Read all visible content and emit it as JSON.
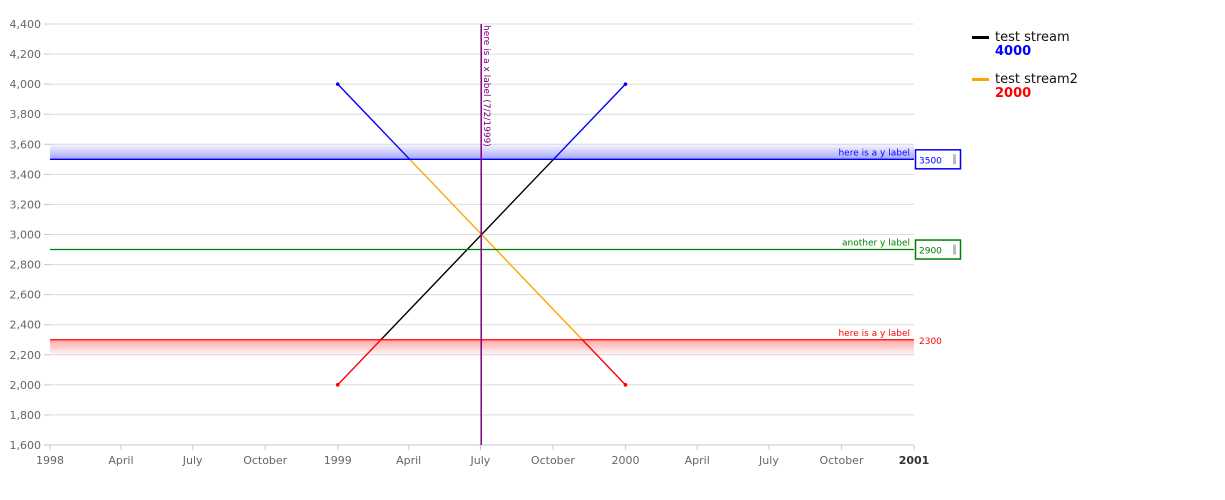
{
  "chart_data": {
    "type": "line",
    "x_axis": {
      "type": "date",
      "min": "1998-01-01",
      "max": "2001-01-01",
      "ticks": [
        {
          "date": "1998-01-01",
          "label": "1998",
          "major": true
        },
        {
          "date": "1998-04-01",
          "label": "April",
          "major": false
        },
        {
          "date": "1998-07-01",
          "label": "July",
          "major": false
        },
        {
          "date": "1998-10-01",
          "label": "October",
          "major": false
        },
        {
          "date": "1999-01-01",
          "label": "1999",
          "major": true
        },
        {
          "date": "1999-04-01",
          "label": "April",
          "major": false
        },
        {
          "date": "1999-07-01",
          "label": "July",
          "major": false
        },
        {
          "date": "1999-10-01",
          "label": "October",
          "major": false
        },
        {
          "date": "2000-01-01",
          "label": "2000",
          "major": true
        },
        {
          "date": "2000-04-01",
          "label": "April",
          "major": false
        },
        {
          "date": "2000-07-01",
          "label": "July",
          "major": false
        },
        {
          "date": "2000-10-01",
          "label": "October",
          "major": false
        },
        {
          "date": "2001-01-01",
          "label": "2001",
          "major": true,
          "bold": true
        }
      ]
    },
    "y_axis": {
      "min": 1600,
      "max": 4400,
      "ticks": [
        {
          "value": 1600,
          "label": "1,600"
        },
        {
          "value": 1800,
          "label": "1,800"
        },
        {
          "value": 2000,
          "label": "2,000"
        },
        {
          "value": 2200,
          "label": "2,200"
        },
        {
          "value": 2400,
          "label": "2,400"
        },
        {
          "value": 2600,
          "label": "2,600"
        },
        {
          "value": 2800,
          "label": "2,800"
        },
        {
          "value": 3000,
          "label": "3,000"
        },
        {
          "value": 3200,
          "label": "3,200"
        },
        {
          "value": 3400,
          "label": "3,400"
        },
        {
          "value": 3600,
          "label": "3,600"
        },
        {
          "value": 3800,
          "label": "3,800"
        },
        {
          "value": 4000,
          "label": "4,000"
        },
        {
          "value": 4200,
          "label": "4,200"
        },
        {
          "value": 4400,
          "label": "4,400"
        }
      ]
    },
    "grid": true,
    "series": [
      {
        "name": "test stream",
        "color": "#000000",
        "legend_value": "4000",
        "legend_value_color": "#0000ff",
        "points": [
          {
            "x": "1999-01-01",
            "y": 2000
          },
          {
            "x": "2000-01-01",
            "y": 4000
          }
        ],
        "threshold_colors": {
          "above": "#0000ff",
          "below": "#ff0000"
        }
      },
      {
        "name": "test stream2",
        "color": "#ffa500",
        "legend_value": "2000",
        "legend_value_color": "#ff0000",
        "points": [
          {
            "x": "1999-01-01",
            "y": 4000
          },
          {
            "x": "2000-01-01",
            "y": 2000
          }
        ],
        "threshold_colors": {
          "above": "#0000ff",
          "below": "#ff0000"
        }
      }
    ],
    "threshold_bands": [
      {
        "from": 3500,
        "to": 3600,
        "color": "#0000ff"
      },
      {
        "from": 2200,
        "to": 2300,
        "color": "#ff0000"
      }
    ],
    "y_lines": [
      {
        "value": 3500,
        "label": "here is a y label",
        "badge": "3500",
        "color": "#0000ff",
        "boxed": true
      },
      {
        "value": 2900,
        "label": "another y label",
        "badge": "2900",
        "color": "#008000",
        "boxed": true
      },
      {
        "value": 2300,
        "label": "here is a y label",
        "badge": "2300",
        "color": "#ff0000",
        "boxed": false
      }
    ],
    "x_lines": [
      {
        "value": "1999-07-02",
        "label": "here is a x label (7/2/1999)",
        "color": "#800080"
      }
    ],
    "legend_position": "top-right"
  }
}
